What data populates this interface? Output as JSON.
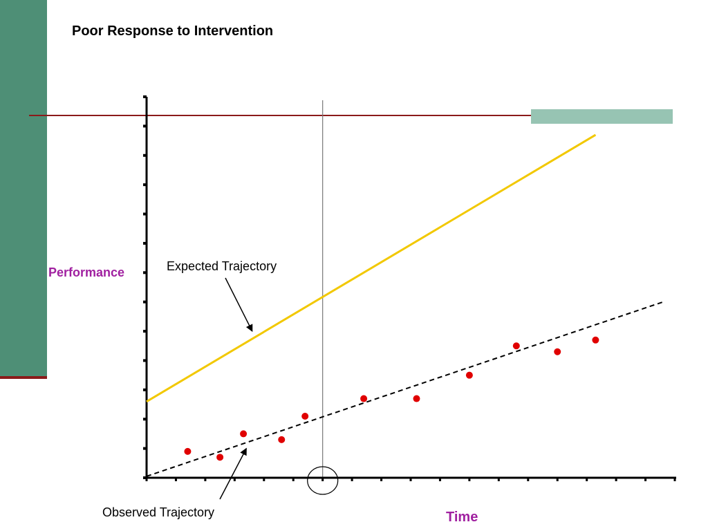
{
  "slide": {
    "title": "Poor Response to Intervention"
  },
  "colors": {
    "band": "#4e8f76",
    "accent_rule": "#8b1a1a",
    "corner_accent": "#97c4b3",
    "expected_line": "#f2c800",
    "observed_points": "#e00000",
    "label_purple": "#a020a0"
  },
  "chart_data": {
    "type": "scatter",
    "title": "Poor Response to Intervention",
    "xlabel": "Time",
    "ylabel": "Performance",
    "xlim": [
      0,
      18
    ],
    "ylim": [
      0,
      13
    ],
    "x_ticks": [
      0,
      1,
      2,
      3,
      4,
      5,
      6,
      7,
      8,
      9,
      10,
      11,
      12,
      13,
      14,
      15,
      16,
      17,
      18
    ],
    "y_ticks": [
      0,
      1,
      2,
      3,
      4,
      5,
      6,
      7,
      8,
      9,
      10,
      11,
      12,
      13
    ],
    "grid": false,
    "intervention_x": 6,
    "series": [
      {
        "name": "Observed Trajectory",
        "kind": "points",
        "x": [
          1.4,
          2.5,
          3.3,
          4.6,
          5.4,
          7.4,
          9.2,
          11.0,
          12.6,
          14.0,
          15.3
        ],
        "y": [
          0.9,
          0.7,
          1.5,
          1.3,
          2.1,
          2.7,
          2.7,
          3.5,
          4.5,
          4.3,
          4.7
        ]
      },
      {
        "name": "Observed Trajectory",
        "kind": "dashed-trend",
        "x": [
          0,
          17.6
        ],
        "y": [
          0.05,
          6.0
        ]
      },
      {
        "name": "Expected Trajectory",
        "kind": "line",
        "x": [
          0,
          15.3
        ],
        "y": [
          2.6,
          11.7
        ]
      }
    ],
    "annotations": [
      {
        "text": "Expected Trajectory",
        "target_x": 3.6,
        "target_y": 5.0
      },
      {
        "text": "Observed Trajectory",
        "target_x": 3.4,
        "target_y": 1.0
      }
    ]
  }
}
